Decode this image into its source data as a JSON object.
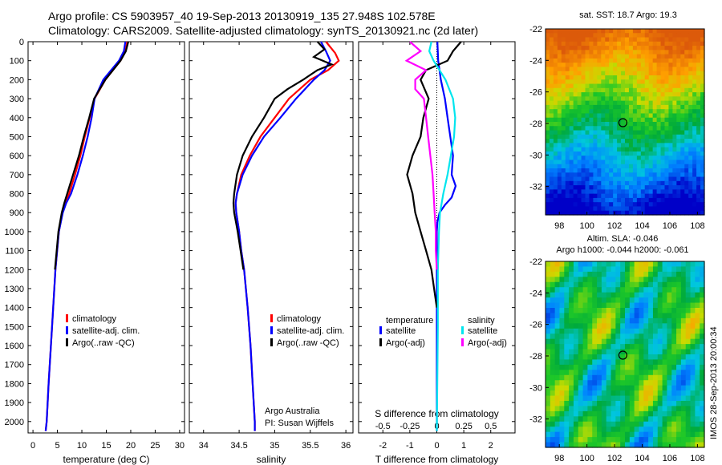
{
  "header": {
    "line1": "Argo profile: CS 5903957_40 19-Sep-2013 20130919_135 27.948S 102.578E",
    "line2": "Climatology: CARS2009. Satellite-adjusted climatology: synTS_20130921.nc (2d later)"
  },
  "footer_stamp": "IMOS 28-Sep-2013 20:00:34",
  "colors": {
    "climatology": "#ff0000",
    "satellite": "#0000ff",
    "argo": "#000000",
    "sat_salinity": "#00e5ee",
    "argo_salinity": "#ff00ff"
  },
  "chart_data": [
    {
      "id": "temperature",
      "type": "line",
      "xlabel": "temperature (deg C)",
      "ylabel": "",
      "xlim": [
        -1,
        31
      ],
      "ylim": [
        2060,
        0
      ],
      "xticks": [
        "0",
        "5",
        "10",
        "15",
        "20",
        "25",
        "30"
      ],
      "yticks": [
        "0",
        "100",
        "200",
        "300",
        "400",
        "500",
        "600",
        "700",
        "800",
        "900",
        "1000",
        "1100",
        "1200",
        "1300",
        "1400",
        "1500",
        "1600",
        "1700",
        "1800",
        "1900",
        "2000"
      ],
      "legend": [
        "climatology",
        "satellite-adj. clim.",
        "Argo(..raw -QC)"
      ],
      "series": [
        {
          "name": "climatology",
          "depth": [
            0,
            50,
            100,
            200,
            300,
            400,
            500,
            600,
            700,
            800,
            850,
            900,
            1000,
            1200,
            1500,
            1800,
            2000,
            2050
          ],
          "values": [
            19.3,
            18.9,
            17.9,
            14.8,
            12.6,
            11.6,
            10.6,
            9.7,
            8.6,
            7.4,
            6.6,
            6.0,
            5.3,
            4.6,
            3.9,
            3.2,
            2.8,
            2.6
          ]
        },
        {
          "name": "satellite-adj. clim.",
          "depth": [
            0,
            50,
            100,
            200,
            300,
            400,
            500,
            600,
            700,
            800,
            850,
            900,
            1000,
            1200,
            1500,
            1800,
            2000,
            2050
          ],
          "values": [
            18.9,
            18.6,
            17.6,
            14.4,
            12.6,
            12.0,
            11.2,
            10.2,
            9.1,
            7.8,
            6.8,
            6.1,
            5.3,
            4.6,
            3.9,
            3.2,
            2.8,
            2.6
          ]
        },
        {
          "name": "Argo(..raw -QC)",
          "depth": [
            0,
            50,
            100,
            200,
            300,
            400,
            500,
            600,
            700,
            800,
            850,
            900,
            1000,
            1200
          ],
          "values": [
            19.5,
            19.0,
            17.9,
            14.8,
            12.5,
            11.5,
            10.4,
            9.4,
            8.2,
            7.0,
            6.4,
            5.9,
            5.2,
            4.5
          ]
        }
      ]
    },
    {
      "id": "salinity",
      "type": "line",
      "xlabel": "salinity",
      "ylabel": "",
      "xlim": [
        33.8,
        36.1
      ],
      "ylim": [
        2060,
        0
      ],
      "xticks": [
        "34",
        "34.5",
        "35",
        "35.5",
        "36"
      ],
      "legend": [
        "climatology",
        "satellite-adj. clim.",
        "Argo(..raw -QC)"
      ],
      "annotation": [
        "Argo Australia",
        "PI: Susan Wijffels"
      ],
      "series": [
        {
          "name": "climatology",
          "depth": [
            0,
            60,
            100,
            150,
            200,
            300,
            400,
            500,
            600,
            700,
            800,
            850,
            900,
            1000,
            1100,
            1200,
            1400,
            1600,
            1800,
            2000,
            2050
          ],
          "values": [
            35.72,
            35.85,
            35.9,
            35.75,
            35.5,
            35.2,
            35.0,
            34.8,
            34.65,
            34.53,
            34.47,
            34.45,
            34.46,
            34.5,
            34.53,
            34.57,
            34.62,
            34.66,
            34.69,
            34.72,
            34.72
          ]
        },
        {
          "name": "satellite-adj. clim.",
          "depth": [
            0,
            50,
            100,
            150,
            200,
            300,
            400,
            500,
            600,
            700,
            800,
            850,
            900,
            1000,
            1100,
            1200,
            1400,
            1600,
            1800,
            2000,
            2050
          ],
          "values": [
            35.65,
            35.72,
            35.78,
            35.7,
            35.55,
            35.3,
            35.08,
            34.85,
            34.68,
            34.55,
            34.47,
            34.45,
            34.46,
            34.5,
            34.53,
            34.57,
            34.62,
            34.66,
            34.69,
            34.72,
            34.72
          ]
        },
        {
          "name": "Argo(..raw -QC)",
          "depth": [
            0,
            40,
            80,
            120,
            150,
            200,
            250,
            300,
            400,
            500,
            600,
            700,
            800,
            850,
            900,
            1000,
            1100,
            1200
          ],
          "values": [
            35.6,
            35.7,
            35.55,
            35.8,
            35.6,
            35.4,
            35.18,
            35.0,
            34.85,
            34.68,
            34.55,
            34.47,
            34.43,
            34.42,
            34.43,
            34.48,
            34.52,
            34.56
          ]
        }
      ]
    },
    {
      "id": "difference",
      "type": "line",
      "xlabel": "T difference from climatology",
      "xlabel2": "S difference from climatology",
      "xlim": [
        -2.9,
        2.9
      ],
      "ylim": [
        2060,
        0
      ],
      "xticks": [
        "-2",
        "-1",
        "0",
        "1",
        "2"
      ],
      "xticks2": [
        "-0.5",
        "-0.25",
        "0",
        "0.25",
        "0.5"
      ],
      "legend_titles": [
        "temperature",
        "salinity"
      ],
      "legend": [
        "satellite",
        "Argo(-adj)",
        "satellite",
        "Argo(-adj)"
      ],
      "series": [
        {
          "name": "satellite",
          "depth": [
            0,
            100,
            200,
            300,
            400,
            500,
            600,
            700,
            760,
            820,
            860,
            900,
            950,
            1000,
            1100,
            1200,
            1500,
            2050
          ],
          "values": [
            0.02,
            0.05,
            0.15,
            0.3,
            0.4,
            0.5,
            0.6,
            0.55,
            0.7,
            0.55,
            0.3,
            0.1,
            0.02,
            0.0,
            0.0,
            0.0,
            0.0,
            0.0
          ]
        },
        {
          "name": "Argo(-adj)",
          "depth": [
            0,
            50,
            100,
            150,
            200,
            300,
            400,
            500,
            600,
            700,
            800,
            900,
            1000,
            1100,
            1200,
            1300,
            1400
          ],
          "values": [
            0.9,
            0.6,
            0.4,
            -0.4,
            -0.6,
            -0.3,
            -0.5,
            -0.6,
            -0.9,
            -1.1,
            -0.9,
            -0.8,
            -0.6,
            -0.4,
            -0.2,
            -0.1,
            0.0
          ]
        },
        {
          "name": "satellite",
          "depth": [
            0,
            50,
            100,
            200,
            300,
            400,
            500,
            600,
            700,
            800,
            900,
            1000,
            1200,
            1500,
            2050
          ],
          "values": [
            -0.05,
            -0.07,
            -0.03,
            0.08,
            0.15,
            0.17,
            0.16,
            0.13,
            0.1,
            0.06,
            0.03,
            0.02,
            0.01,
            0.01,
            0.0
          ]
        },
        {
          "name": "Argo(-adj)",
          "depth": [
            0,
            50,
            100,
            150,
            200,
            250,
            300,
            400,
            500,
            600,
            700,
            800,
            900,
            1000,
            1100,
            1200
          ],
          "values": [
            -0.25,
            -0.15,
            -0.28,
            -0.1,
            -0.2,
            -0.2,
            -0.12,
            -0.1,
            -0.08,
            -0.06,
            -0.04,
            -0.03,
            -0.02,
            -0.01,
            -0.01,
            0.0
          ]
        }
      ]
    },
    {
      "id": "sst_map",
      "type": "heatmap",
      "title": "sat. SST: 18.7 Argo: 19.3",
      "xlim": [
        97,
        108.5
      ],
      "ylim": [
        -33.8,
        -22
      ],
      "xticks": [
        "98",
        "100",
        "102",
        "104",
        "106",
        "108"
      ],
      "yticks": [
        "-22",
        "-24",
        "-26",
        "-28",
        "-30",
        "-32"
      ],
      "marker": [
        102.6,
        -27.95
      ]
    },
    {
      "id": "sla_map",
      "type": "heatmap",
      "title": "Altim. SLA: -0.046",
      "subtitle": "Argo h1000: -0.044 h2000: -0.061",
      "xlim": [
        97,
        108.5
      ],
      "ylim": [
        -33.8,
        -22
      ],
      "xticks": [
        "98",
        "100",
        "102",
        "104",
        "106",
        "108"
      ],
      "yticks": [
        "-22",
        "-24",
        "-26",
        "-28",
        "-30",
        "-32"
      ],
      "marker": [
        102.6,
        -27.95
      ]
    }
  ]
}
